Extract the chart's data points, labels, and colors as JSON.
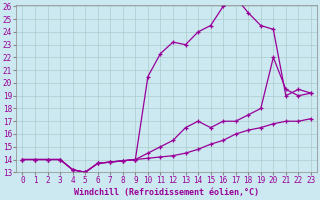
{
  "xlabel": "Windchill (Refroidissement éolien,°C)",
  "background_color": "#cce8f0",
  "grid_color": "#aacccc",
  "line_color": "#990099",
  "x_all": [
    0,
    1,
    2,
    3,
    4,
    5,
    6,
    7,
    8,
    9,
    10,
    11,
    12,
    13,
    14,
    15,
    16,
    17,
    18,
    19,
    20,
    21,
    22,
    23
  ],
  "line1_y": [
    14.0,
    14.0,
    14.0,
    14.0,
    13.2,
    13.0,
    13.7,
    13.8,
    13.9,
    14.0,
    14.1,
    14.2,
    14.3,
    14.5,
    14.8,
    15.2,
    15.5,
    16.0,
    16.3,
    16.5,
    16.8,
    17.0,
    17.0,
    17.2
  ],
  "line2_y": [
    14.0,
    14.0,
    14.0,
    14.0,
    13.2,
    13.0,
    13.7,
    13.8,
    13.9,
    14.0,
    14.5,
    15.0,
    15.5,
    16.5,
    17.0,
    16.5,
    17.0,
    17.0,
    17.5,
    18.0,
    22.0,
    19.5,
    19.0,
    19.2
  ],
  "line3_y": [
    14.0,
    14.0,
    14.0,
    14.0,
    13.2,
    13.0,
    13.7,
    13.8,
    13.9,
    14.0,
    20.5,
    22.3,
    23.2,
    23.0,
    24.0,
    24.5,
    26.0,
    26.7,
    25.5,
    24.5,
    24.2,
    19.0,
    19.5,
    19.2
  ],
  "ylim": [
    13,
    26
  ],
  "xlim": [
    -0.5,
    23.5
  ],
  "yticks": [
    13,
    14,
    15,
    16,
    17,
    18,
    19,
    20,
    21,
    22,
    23,
    24,
    25,
    26
  ],
  "xticks": [
    0,
    1,
    2,
    3,
    4,
    5,
    6,
    7,
    8,
    9,
    10,
    11,
    12,
    13,
    14,
    15,
    16,
    17,
    18,
    19,
    20,
    21,
    22,
    23
  ],
  "fontsize_label": 6,
  "fontsize_tick": 5.5
}
